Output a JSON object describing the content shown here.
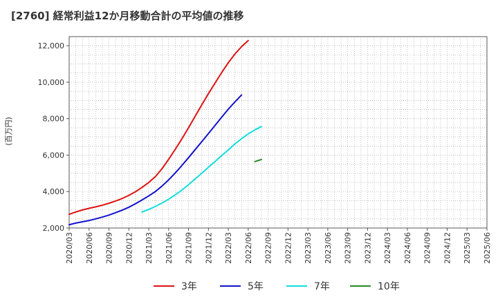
{
  "chart_data": {
    "type": "line",
    "title": "[2760]  経常利益12か月移動合計の平均値の推移",
    "ylabel": "(百万円)",
    "xlabel": "",
    "ylim": [
      2000,
      12500
    ],
    "yticks": [
      2000,
      4000,
      6000,
      8000,
      10000,
      12000
    ],
    "ytick_labels": [
      "2,000",
      "4,000",
      "6,000",
      "8,000",
      "10,000",
      "12,000"
    ],
    "x_ticks": [
      "2020/03",
      "2020/06",
      "2020/09",
      "2020/12",
      "2021/03",
      "2021/06",
      "2021/09",
      "2021/12",
      "2022/03",
      "2022/06",
      "2022/09",
      "2022/12",
      "2023/03",
      "2023/06",
      "2023/09",
      "2023/12",
      "2024/03",
      "2024/06",
      "2024/09",
      "2024/12",
      "2025/03",
      "2025/06"
    ],
    "grid": true,
    "legend_position": "bottom",
    "series": [
      {
        "name": "3年",
        "color": "#dd1111",
        "start_index": 0,
        "values": [
          2750,
          2880,
          2990,
          3080,
          3160,
          3250,
          3360,
          3480,
          3620,
          3790,
          3990,
          4230,
          4500,
          4820,
          5250,
          5770,
          6320,
          6890,
          7500,
          8130,
          8760,
          9370,
          9950,
          10530,
          11070,
          11550,
          11950,
          12280
        ]
      },
      {
        "name": "5年",
        "color": "#1111cc",
        "start_index": 0,
        "values": [
          2180,
          2270,
          2340,
          2410,
          2500,
          2600,
          2710,
          2840,
          2980,
          3140,
          3330,
          3540,
          3760,
          4000,
          4300,
          4640,
          5020,
          5430,
          5860,
          6300,
          6740,
          7180,
          7630,
          8080,
          8520,
          8920,
          9300
        ]
      },
      {
        "name": "7年",
        "color": "#11dddd",
        "start_index": 11,
        "values": [
          2880,
          3020,
          3180,
          3370,
          3580,
          3820,
          4080,
          4380,
          4690,
          5010,
          5330,
          5650,
          5970,
          6290,
          6610,
          6900,
          7160,
          7380,
          7570
        ]
      },
      {
        "name": "10年",
        "color": "#228822",
        "start_index": 28,
        "values": [
          5640,
          5760
        ]
      }
    ]
  }
}
